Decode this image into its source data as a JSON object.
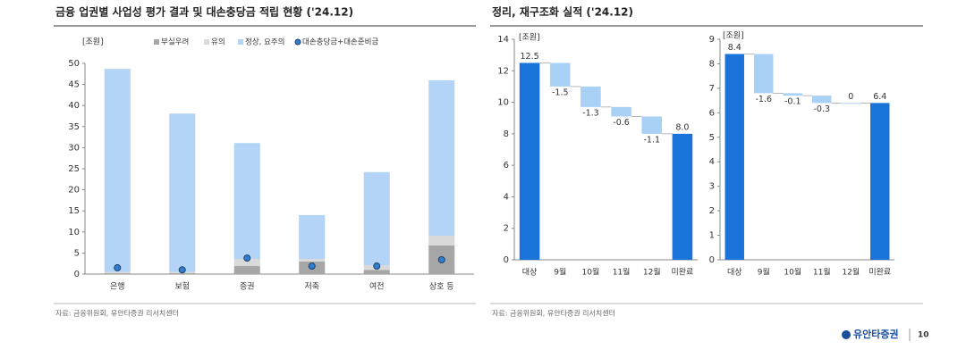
{
  "sections": [
    {
      "title": "금융 업권별 사업성 평가 결과 및 대손충당금 적립 현황 ('24.12)",
      "source": "자료: 금융위원회, 유안타증권 리서치센터"
    },
    {
      "title": "정리, 재구조화 실적 ('24.12)",
      "source": "자료: 금융위원회, 유안타증권 리서치센터"
    }
  ],
  "footer": {
    "logo": "유안타증권",
    "page": "10"
  },
  "chart_data": [
    {
      "type": "bar",
      "stacked": true,
      "unit": "[조원]",
      "categories": [
        "은행",
        "보험",
        "증권",
        "저축",
        "여전",
        "상호 등"
      ],
      "series": [
        {
          "name": "부실우려",
          "color": "#a6a6a6",
          "values": [
            0.2,
            0.2,
            1.9,
            3.0,
            1.0,
            6.8
          ]
        },
        {
          "name": "유의",
          "color": "#d9d9d9",
          "values": [
            0.3,
            0.3,
            1.7,
            0.6,
            1.1,
            2.3
          ]
        },
        {
          "name": "정상, 요주의",
          "color": "#b3d4f7",
          "values": [
            48.2,
            37.6,
            27.5,
            10.4,
            22.1,
            36.9
          ]
        },
        {
          "name": "대손충당금+대손준비금",
          "type": "scatter",
          "color": "#2e7fd1",
          "values": [
            1.5,
            1.0,
            3.8,
            1.9,
            1.9,
            3.4
          ]
        }
      ],
      "ylim": [
        0,
        50
      ],
      "yticks": [
        0,
        5,
        10,
        15,
        20,
        25,
        30,
        35,
        40,
        45,
        50
      ],
      "grid": false
    },
    {
      "type": "waterfall",
      "unit": "[조원]",
      "total_color": "#1a73d9",
      "change_color": "#a9d0f5",
      "categories": [
        "대상",
        "9월",
        "10월",
        "11월",
        "12월",
        "미완료"
      ],
      "values": [
        12.5,
        -1.5,
        -1.3,
        -0.6,
        -1.1,
        8.0
      ],
      "value_labels": [
        "12.5",
        "-1.5",
        "-1.3",
        "-0.6",
        "-1.1",
        "8.0"
      ],
      "ylim": [
        0,
        14
      ],
      "yticks": [
        0,
        2,
        4,
        6,
        8,
        10,
        12,
        14
      ]
    },
    {
      "type": "waterfall",
      "unit": "[조원]",
      "total_color": "#1a73d9",
      "change_color": "#a9d0f5",
      "categories": [
        "대상",
        "9월",
        "10월",
        "11월",
        "12월",
        "미완료"
      ],
      "values": [
        8.4,
        -1.6,
        -0.1,
        -0.3,
        0,
        6.4
      ],
      "value_labels": [
        "8.4",
        "-1.6",
        "-0.1",
        "-0.3",
        "0",
        "6.4"
      ],
      "ylim": [
        0,
        9
      ],
      "yticks": [
        0,
        1,
        2,
        3,
        4,
        5,
        6,
        7,
        8,
        9
      ]
    }
  ]
}
